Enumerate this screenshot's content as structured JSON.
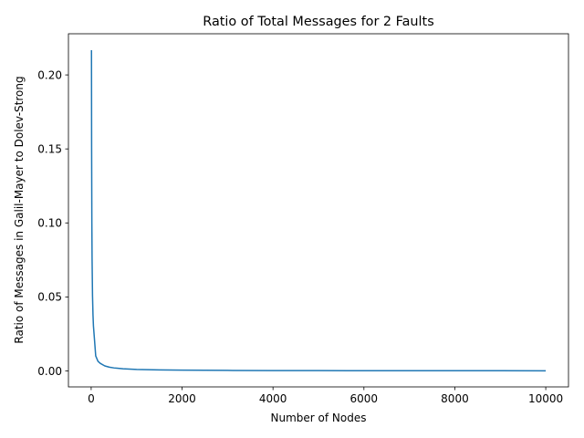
{
  "chart_data": {
    "type": "line",
    "title": "Ratio of Total Messages for 2 Faults",
    "xlabel": "Number of Nodes",
    "ylabel": "Ratio of Messages in Galil-Mayer to Dolev-Strong",
    "xlim": [
      -500,
      10500
    ],
    "ylim": [
      -0.0108,
      0.2278
    ],
    "xticks": [
      0,
      2000,
      4000,
      6000,
      8000,
      10000
    ],
    "xtick_labels": [
      "0",
      "2000",
      "4000",
      "6000",
      "8000",
      "10000"
    ],
    "yticks": [
      0.0,
      0.05,
      0.1,
      0.15,
      0.2
    ],
    "ytick_labels": [
      "0.00",
      "0.05",
      "0.10",
      "0.15",
      "0.20"
    ],
    "grid": false,
    "colors": {
      "line": "#1f77b4"
    },
    "series": [
      {
        "x": [
          7,
          10,
          15,
          20,
          30,
          40,
          50,
          75,
          100,
          150,
          200,
          300,
          400,
          500,
          700,
          1000,
          1500,
          2000,
          3000,
          4000,
          5000,
          6000,
          7000,
          8000,
          9000,
          10000
        ],
        "values": [
          0.2167,
          0.152,
          0.101,
          0.076,
          0.0506,
          0.038,
          0.0304,
          0.0203,
          0.0101,
          0.0065,
          0.0051,
          0.0034,
          0.00254,
          0.00203,
          0.00145,
          0.00101,
          0.00068,
          0.00051,
          0.00034,
          0.00025,
          0.0002,
          0.00017,
          0.00015,
          0.00013,
          0.00011,
          0.0001
        ]
      }
    ]
  }
}
